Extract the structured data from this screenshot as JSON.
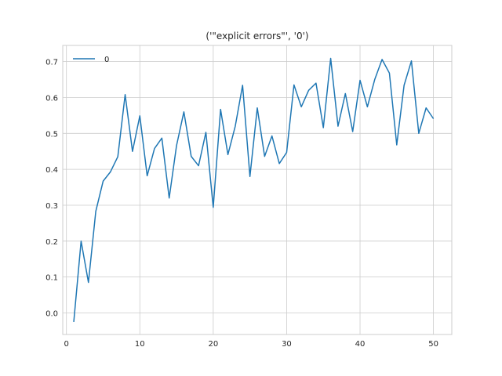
{
  "chart_data": {
    "type": "line",
    "title": "('\"explicit errors\"', '0')",
    "xlabel": "",
    "ylabel": "",
    "xlim": [
      -0.5,
      52.5
    ],
    "ylim": [
      -0.06,
      0.745
    ],
    "xticks": [
      0,
      10,
      20,
      30,
      40,
      50
    ],
    "yticks": [
      0.0,
      0.1,
      0.2,
      0.3,
      0.4,
      0.5,
      0.6,
      0.7
    ],
    "grid": true,
    "legend": {
      "placement": "top-left",
      "entries": [
        "0"
      ]
    },
    "colors": {
      "series_0": "#1f77b4",
      "grid": "#cccccc",
      "axes_edge": "#cccccc",
      "background": "#ffffff"
    },
    "series": [
      {
        "name": "0",
        "x": [
          1,
          2,
          3,
          4,
          5,
          6,
          7,
          8,
          9,
          10,
          11,
          12,
          13,
          14,
          15,
          16,
          17,
          18,
          19,
          20,
          21,
          22,
          23,
          24,
          25,
          26,
          27,
          28,
          29,
          30,
          31,
          32,
          33,
          34,
          35,
          36,
          37,
          38,
          39,
          40,
          41,
          42,
          43,
          44,
          45,
          46,
          47,
          48,
          49,
          50
        ],
        "values": [
          -0.025,
          0.2,
          0.085,
          0.283,
          0.367,
          0.393,
          0.435,
          0.608,
          0.45,
          0.549,
          0.382,
          0.458,
          0.487,
          0.32,
          0.466,
          0.56,
          0.436,
          0.41,
          0.503,
          0.294,
          0.567,
          0.441,
          0.52,
          0.634,
          0.38,
          0.571,
          0.436,
          0.493,
          0.416,
          0.447,
          0.635,
          0.574,
          0.62,
          0.64,
          0.516,
          0.709,
          0.52,
          0.611,
          0.505,
          0.648,
          0.574,
          0.65,
          0.706,
          0.668,
          0.468,
          0.634,
          0.702,
          0.5,
          0.571,
          0.541
        ]
      }
    ]
  }
}
